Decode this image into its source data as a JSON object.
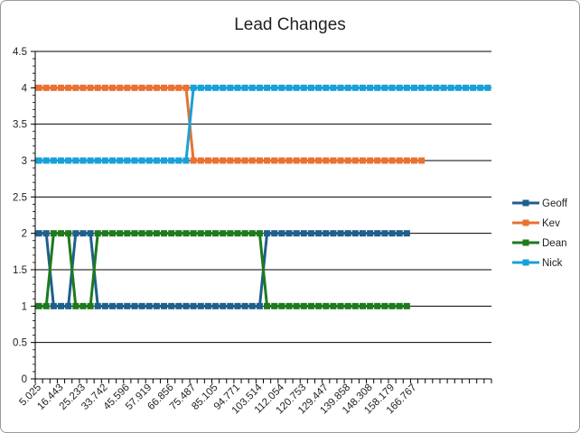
{
  "chart_data": {
    "type": "line",
    "title": "Lead Changes",
    "xlabel": "",
    "ylabel": "",
    "ylim": [
      0,
      4.5
    ],
    "yticks": [
      "0",
      "0.5",
      "1",
      "1.5",
      "2",
      "2.5",
      "3",
      "3.5",
      "4",
      "4.5"
    ],
    "x_tick_labels": [
      "5.025",
      "16.443",
      "25.233",
      "33.742",
      "45.596",
      "57.919",
      "66.856",
      "75.487",
      "85.105",
      "94.771",
      "103.514",
      "112.054",
      "120.753",
      "129.447",
      "139.858",
      "148.308",
      "158.179",
      "166.767"
    ],
    "n_categories": 62,
    "grid": true,
    "legend_position": "right",
    "series": [
      {
        "name": "Geoff",
        "color": "#1f5f8b",
        "values": [
          2,
          2,
          1,
          1,
          1,
          2,
          2,
          2,
          1,
          1,
          1,
          1,
          1,
          1,
          1,
          1,
          1,
          1,
          1,
          1,
          1,
          1,
          1,
          1,
          1,
          1,
          1,
          1,
          1,
          1,
          1,
          2,
          2,
          2,
          2,
          2,
          2,
          2,
          2,
          2,
          2,
          2,
          2,
          2,
          2,
          2,
          2,
          2,
          2,
          2,
          2
        ]
      },
      {
        "name": "Kev",
        "color": "#e97132",
        "values": [
          4,
          4,
          4,
          4,
          4,
          4,
          4,
          4,
          4,
          4,
          4,
          4,
          4,
          4,
          4,
          4,
          4,
          4,
          4,
          4,
          4,
          3,
          3,
          3,
          3,
          3,
          3,
          3,
          3,
          3,
          3,
          3,
          3,
          3,
          3,
          3,
          3,
          3,
          3,
          3,
          3,
          3,
          3,
          3,
          3,
          3,
          3,
          3,
          3,
          3,
          3,
          3,
          3
        ]
      },
      {
        "name": "Dean",
        "color": "#1e7a1e",
        "values": [
          1,
          1,
          2,
          2,
          2,
          1,
          1,
          1,
          2,
          2,
          2,
          2,
          2,
          2,
          2,
          2,
          2,
          2,
          2,
          2,
          2,
          2,
          2,
          2,
          2,
          2,
          2,
          2,
          2,
          2,
          2,
          1,
          1,
          1,
          1,
          1,
          1,
          1,
          1,
          1,
          1,
          1,
          1,
          1,
          1,
          1,
          1,
          1,
          1,
          1,
          1
        ]
      },
      {
        "name": "Nick",
        "color": "#1aa0d8",
        "values": [
          3,
          3,
          3,
          3,
          3,
          3,
          3,
          3,
          3,
          3,
          3,
          3,
          3,
          3,
          3,
          3,
          3,
          3,
          3,
          3,
          3,
          4,
          4,
          4,
          4,
          4,
          4,
          4,
          4,
          4,
          4,
          4,
          4,
          4,
          4,
          4,
          4,
          4,
          4,
          4,
          4,
          4,
          4,
          4,
          4,
          4,
          4,
          4,
          4,
          4,
          4,
          4,
          4,
          4,
          4,
          4,
          4,
          4,
          4,
          4,
          4,
          4
        ]
      }
    ]
  }
}
